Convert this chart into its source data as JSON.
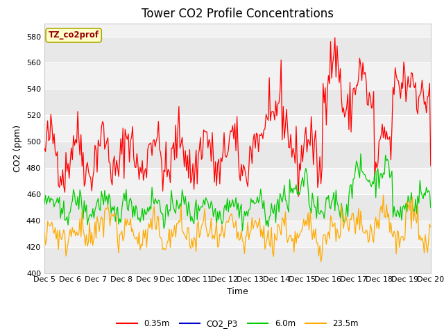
{
  "title": "Tower CO2 Profile Concentrations",
  "xlabel": "Time",
  "ylabel": "CO2 (ppm)",
  "ylim": [
    400,
    590
  ],
  "yticks": [
    400,
    420,
    440,
    460,
    480,
    500,
    520,
    540,
    560,
    580
  ],
  "x_labels": [
    "Dec 5",
    "Dec 6",
    "Dec 7",
    "Dec 8",
    "Dec 9",
    "Dec 10",
    "Dec 11",
    "Dec 12",
    "Dec 13",
    "Dec 14",
    "Dec 15",
    "Dec 16",
    "Dec 17",
    "Dec 18",
    "Dec 19",
    "Dec 20"
  ],
  "legend_label": "TZ_co2prof",
  "series_labels": [
    "0.35m",
    "CO2_P3",
    "6.0m",
    "23.5m"
  ],
  "series_colors": [
    "#ff0000",
    "#0000cc",
    "#00cc00",
    "#ffaa00"
  ],
  "band_colors": [
    "#e8e8e8",
    "#f2f2f2"
  ],
  "label_bg": "#ffffcc",
  "label_border": "#aaaa00",
  "label_text_color": "#990000",
  "background_color": "#ffffff",
  "title_fontsize": 12,
  "axis_fontsize": 9,
  "tick_fontsize": 8
}
